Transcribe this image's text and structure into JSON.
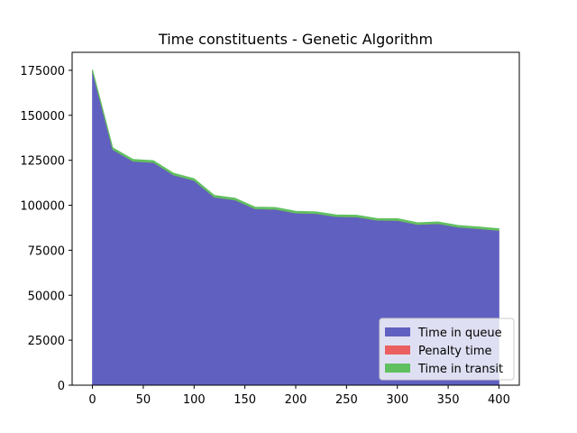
{
  "chart_data": {
    "type": "area",
    "stacked": true,
    "title": "Time constituents - Genetic Algorithm",
    "xlabel": "",
    "ylabel": "",
    "xlim": [
      -20,
      420
    ],
    "ylim": [
      0,
      185000
    ],
    "xticks": [
      0,
      50,
      100,
      150,
      200,
      250,
      300,
      350,
      400
    ],
    "yticks": [
      0,
      25000,
      50000,
      75000,
      100000,
      125000,
      150000,
      175000
    ],
    "grid": false,
    "legend_position": "lower-right",
    "x": [
      0,
      20,
      40,
      60,
      80,
      100,
      120,
      140,
      160,
      180,
      200,
      220,
      240,
      260,
      280,
      300,
      320,
      340,
      360,
      380,
      400
    ],
    "series": [
      {
        "name": "Time in queue",
        "color": "#6060c0",
        "values": [
          174500,
          131000,
          124500,
          123800,
          116800,
          113800,
          104500,
          103000,
          98000,
          97800,
          95700,
          95400,
          93700,
          93500,
          91700,
          91600,
          89300,
          89800,
          87800,
          87000,
          86000
        ]
      },
      {
        "name": "Penalty time",
        "color": "#ea6060",
        "values": [
          0,
          0,
          0,
          0,
          0,
          0,
          0,
          0,
          0,
          0,
          0,
          0,
          0,
          0,
          0,
          0,
          0,
          0,
          0,
          0,
          0
        ]
      },
      {
        "name": "Time in transit",
        "color": "#60c060",
        "values": [
          1000,
          1000,
          1000,
          1000,
          1000,
          1000,
          1000,
          1000,
          1000,
          1000,
          1000,
          1000,
          1000,
          1000,
          1000,
          1000,
          1000,
          1000,
          1000,
          1000,
          1000
        ]
      }
    ]
  }
}
